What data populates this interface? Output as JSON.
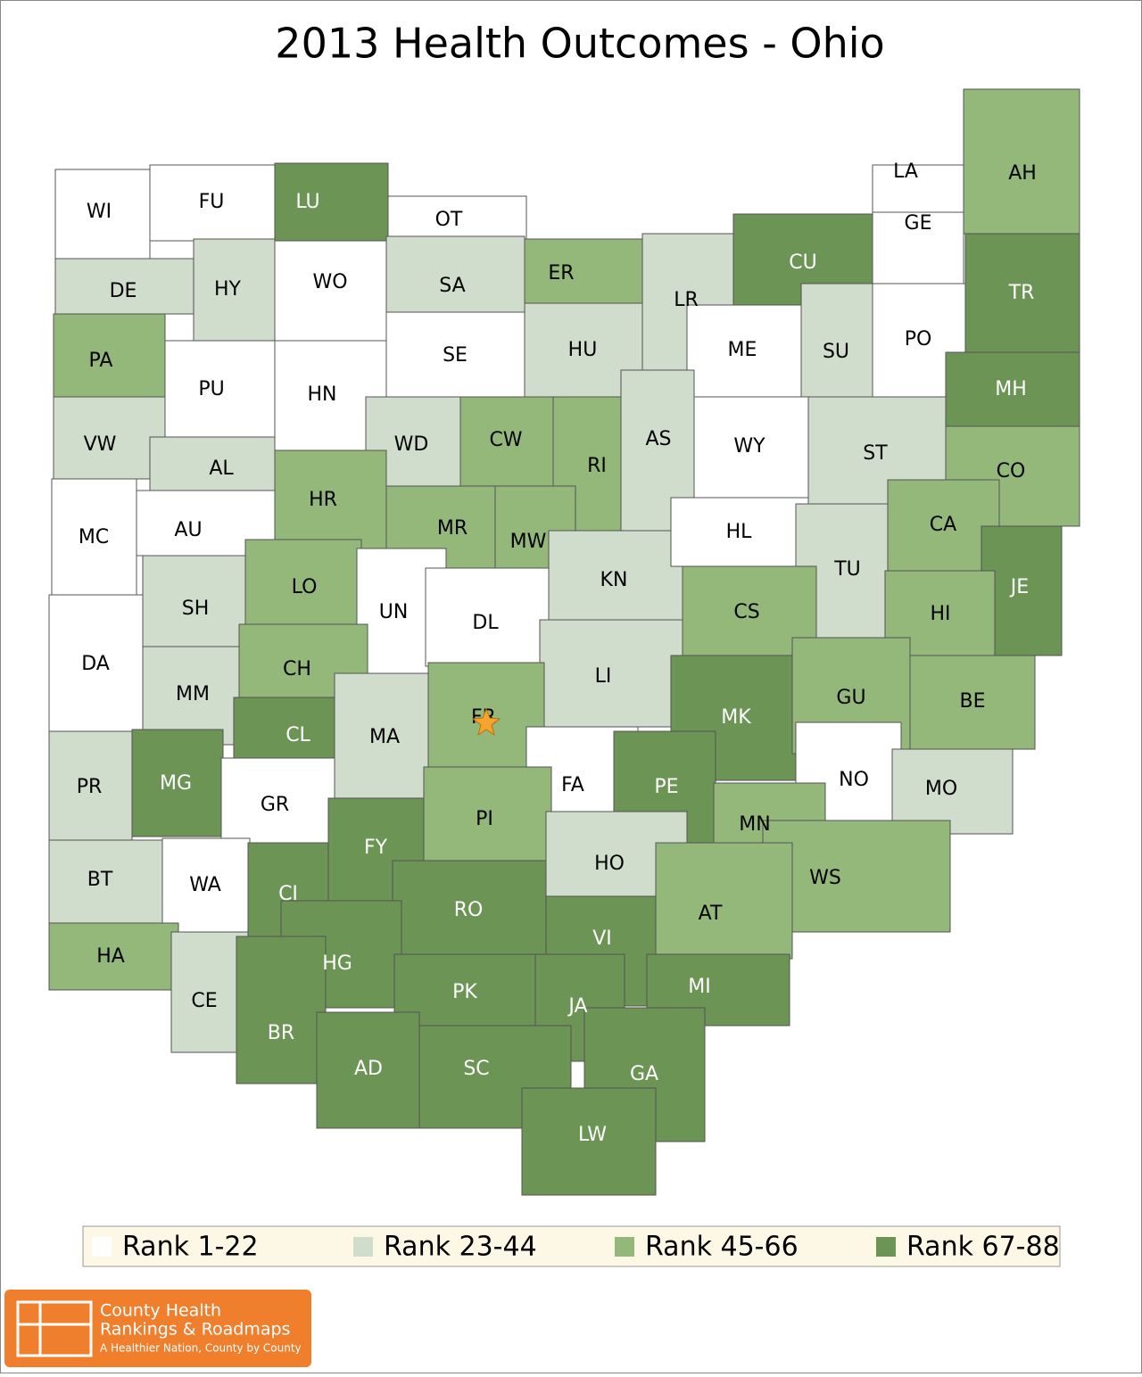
{
  "title": "2013 Health Outcomes - Ohio",
  "counties": [
    {
      "label": "WI",
      "fill": "#ffffff"
    },
    {
      "label": "FU",
      "fill": "#ffffff"
    },
    {
      "label": "LU",
      "fill": "#6b9455"
    },
    {
      "label": "OT",
      "fill": "#ffffff"
    },
    {
      "label": "DE",
      "fill": "#d0dccc"
    },
    {
      "label": "HY",
      "fill": "#d0dccc"
    },
    {
      "label": "WO",
      "fill": "#ffffff"
    },
    {
      "label": "SA",
      "fill": "#d0dccc"
    },
    {
      "label": "ER",
      "fill": "#93b87a"
    },
    {
      "label": "LR",
      "fill": "#d0dccc"
    },
    {
      "label": "CU",
      "fill": "#6b9455"
    },
    {
      "label": "LA",
      "fill": "#ffffff"
    },
    {
      "label": "GE",
      "fill": "#ffffff"
    },
    {
      "label": "AH",
      "fill": "#93b87a"
    },
    {
      "label": "PA",
      "fill": "#93b87a"
    },
    {
      "label": "PU",
      "fill": "#ffffff"
    },
    {
      "label": "HN",
      "fill": "#ffffff"
    },
    {
      "label": "SE",
      "fill": "#ffffff"
    },
    {
      "label": "HU",
      "fill": "#d0dccc"
    },
    {
      "label": "ME",
      "fill": "#ffffff"
    },
    {
      "label": "SU",
      "fill": "#d0dccc"
    },
    {
      "label": "PO",
      "fill": "#ffffff"
    },
    {
      "label": "TR",
      "fill": "#6b9455"
    },
    {
      "label": "MH",
      "fill": "#6b9455"
    },
    {
      "label": "VW",
      "fill": "#d0dccc"
    },
    {
      "label": "AL",
      "fill": "#d0dccc"
    },
    {
      "label": "WD",
      "fill": "#d0dccc"
    },
    {
      "label": "CW",
      "fill": "#93b87a"
    },
    {
      "label": "RI",
      "fill": "#93b87a"
    },
    {
      "label": "AS",
      "fill": "#d0dccc"
    },
    {
      "label": "WY",
      "fill": "#ffffff"
    },
    {
      "label": "ST",
      "fill": "#d0dccc"
    },
    {
      "label": "CO",
      "fill": "#93b87a"
    },
    {
      "label": "MC",
      "fill": "#ffffff"
    },
    {
      "label": "AU",
      "fill": "#ffffff"
    },
    {
      "label": "HR",
      "fill": "#93b87a"
    },
    {
      "label": "MR",
      "fill": "#93b87a"
    },
    {
      "label": "MW",
      "fill": "#93b87a"
    },
    {
      "label": "KN",
      "fill": "#d0dccc"
    },
    {
      "label": "HL",
      "fill": "#ffffff"
    },
    {
      "label": "TU",
      "fill": "#d0dccc"
    },
    {
      "label": "CA",
      "fill": "#93b87a"
    },
    {
      "label": "JE",
      "fill": "#6b9455"
    },
    {
      "label": "SH",
      "fill": "#d0dccc"
    },
    {
      "label": "LO",
      "fill": "#93b87a"
    },
    {
      "label": "UN",
      "fill": "#ffffff"
    },
    {
      "label": "DL",
      "fill": "#ffffff"
    },
    {
      "label": "CS",
      "fill": "#93b87a"
    },
    {
      "label": "HI",
      "fill": "#93b87a"
    },
    {
      "label": "DA",
      "fill": "#ffffff"
    },
    {
      "label": "MM",
      "fill": "#d0dccc"
    },
    {
      "label": "CH",
      "fill": "#93b87a"
    },
    {
      "label": "LI",
      "fill": "#d0dccc"
    },
    {
      "label": "MK",
      "fill": "#6b9455"
    },
    {
      "label": "GU",
      "fill": "#93b87a"
    },
    {
      "label": "BE",
      "fill": "#93b87a"
    },
    {
      "label": "CL",
      "fill": "#6b9455"
    },
    {
      "label": "MA",
      "fill": "#d0dccc"
    },
    {
      "label": "FR",
      "fill": "#93b87a"
    },
    {
      "label": "PR",
      "fill": "#d0dccc"
    },
    {
      "label": "MG",
      "fill": "#6b9455"
    },
    {
      "label": "GR",
      "fill": "#ffffff"
    },
    {
      "label": "FA",
      "fill": "#ffffff"
    },
    {
      "label": "PE",
      "fill": "#6b9455"
    },
    {
      "label": "NO",
      "fill": "#ffffff"
    },
    {
      "label": "MO",
      "fill": "#d0dccc"
    },
    {
      "label": "BT",
      "fill": "#d0dccc"
    },
    {
      "label": "WA",
      "fill": "#ffffff"
    },
    {
      "label": "CI",
      "fill": "#6b9455"
    },
    {
      "label": "FY",
      "fill": "#6b9455"
    },
    {
      "label": "PI",
      "fill": "#93b87a"
    },
    {
      "label": "HO",
      "fill": "#d0dccc"
    },
    {
      "label": "MN",
      "fill": "#93b87a"
    },
    {
      "label": "WS",
      "fill": "#93b87a"
    },
    {
      "label": "HA",
      "fill": "#93b87a"
    },
    {
      "label": "CE",
      "fill": "#d0dccc"
    },
    {
      "label": "RO",
      "fill": "#6b9455"
    },
    {
      "label": "VI",
      "fill": "#6b9455"
    },
    {
      "label": "AT",
      "fill": "#93b87a"
    },
    {
      "label": "HG",
      "fill": "#6b9455"
    },
    {
      "label": "BR",
      "fill": "#6b9455"
    },
    {
      "label": "PK",
      "fill": "#6b9455"
    },
    {
      "label": "JA",
      "fill": "#6b9455"
    },
    {
      "label": "MI",
      "fill": "#6b9455"
    },
    {
      "label": "AD",
      "fill": "#6b9455"
    },
    {
      "label": "SC",
      "fill": "#6b9455"
    },
    {
      "label": "GA",
      "fill": "#6b9455"
    },
    {
      "label": "LW",
      "fill": "#6b9455"
    }
  ],
  "legend": [
    {
      "label": "Rank 1-22",
      "color": "#ffffff"
    },
    {
      "label": "Rank 23-44",
      "color": "#d0dccc"
    },
    {
      "label": "Rank 45-66",
      "color": "#93b87a"
    },
    {
      "label": "Rank 67-88",
      "color": "#6b9455"
    }
  ],
  "logo": {
    "line1": "County Health",
    "line2": "Rankings & Roadmaps",
    "tagline": "A Healthier Nation, County by County"
  }
}
